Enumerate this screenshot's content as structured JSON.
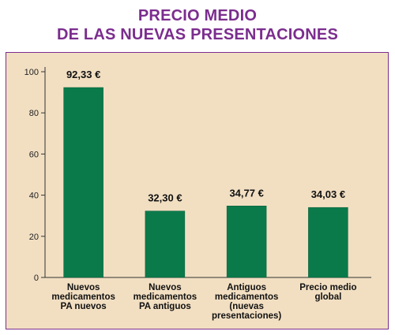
{
  "title_line1": "PRECIO MEDIO",
  "title_line2": "DE LAS NUEVAS PRESENTACIONES",
  "colors": {
    "title": "#7b2d8e",
    "bar": "#0b7a4b",
    "background": "#f2dfc2",
    "border": "#7b2d8e"
  },
  "chart_data": {
    "type": "bar",
    "title": "PRECIO MEDIO DE LAS NUEVAS PRESENTACIONES",
    "categories": [
      [
        "Nuevos",
        "medicamentos",
        "PA nuevos"
      ],
      [
        "Nuevos",
        "medicamentos",
        "PA antiguos"
      ],
      [
        "Antiguos",
        "medicamentos",
        "(nuevas",
        "presentaciones)"
      ],
      [
        "Precio medio",
        "global"
      ]
    ],
    "values": [
      92.33,
      32.3,
      34.77,
      34.03
    ],
    "data_labels": [
      "92,33 €",
      "32,30 €",
      "34,77 €",
      "34,03 €"
    ],
    "yticks": [
      "0",
      "20",
      "40",
      "60",
      "80",
      "100"
    ],
    "ylim": [
      0,
      100
    ],
    "grid": false
  }
}
